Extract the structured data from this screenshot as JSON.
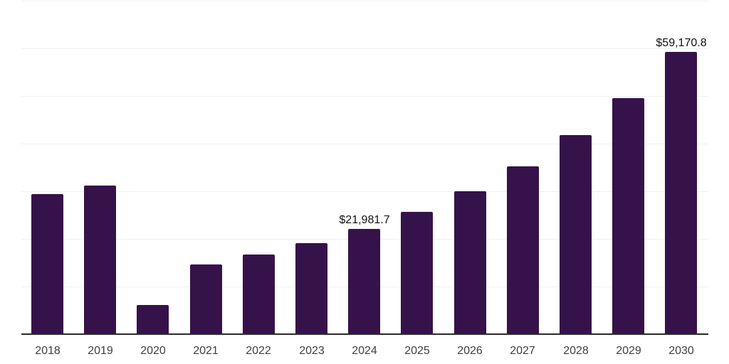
{
  "chart_data": {
    "type": "bar",
    "title": "",
    "xlabel": "",
    "ylabel": "",
    "categories": [
      "2018",
      "2019",
      "2020",
      "2021",
      "2022",
      "2023",
      "2024",
      "2025",
      "2026",
      "2027",
      "2028",
      "2029",
      "2030"
    ],
    "values": [
      29300,
      31000,
      6000,
      14500,
      16600,
      19000,
      21981.7,
      25500,
      29900,
      35100,
      41600,
      49400,
      59170.8
    ],
    "data_labels": {
      "2024": "$21,981.7",
      "2030": "$59,170.8"
    },
    "ylim": [
      0,
      70000
    ],
    "gridline_step": 10000,
    "grid": true,
    "legend": "none",
    "y_tick_labels_visible": false,
    "currency_unit": "$"
  },
  "colors": {
    "bar": "#36124A",
    "axis_line": "#2B2B2B",
    "gridline": "#F0F0F2",
    "tick_label": "#3F3F3F",
    "data_label": "#121212",
    "background": "#FFFFFF"
  }
}
